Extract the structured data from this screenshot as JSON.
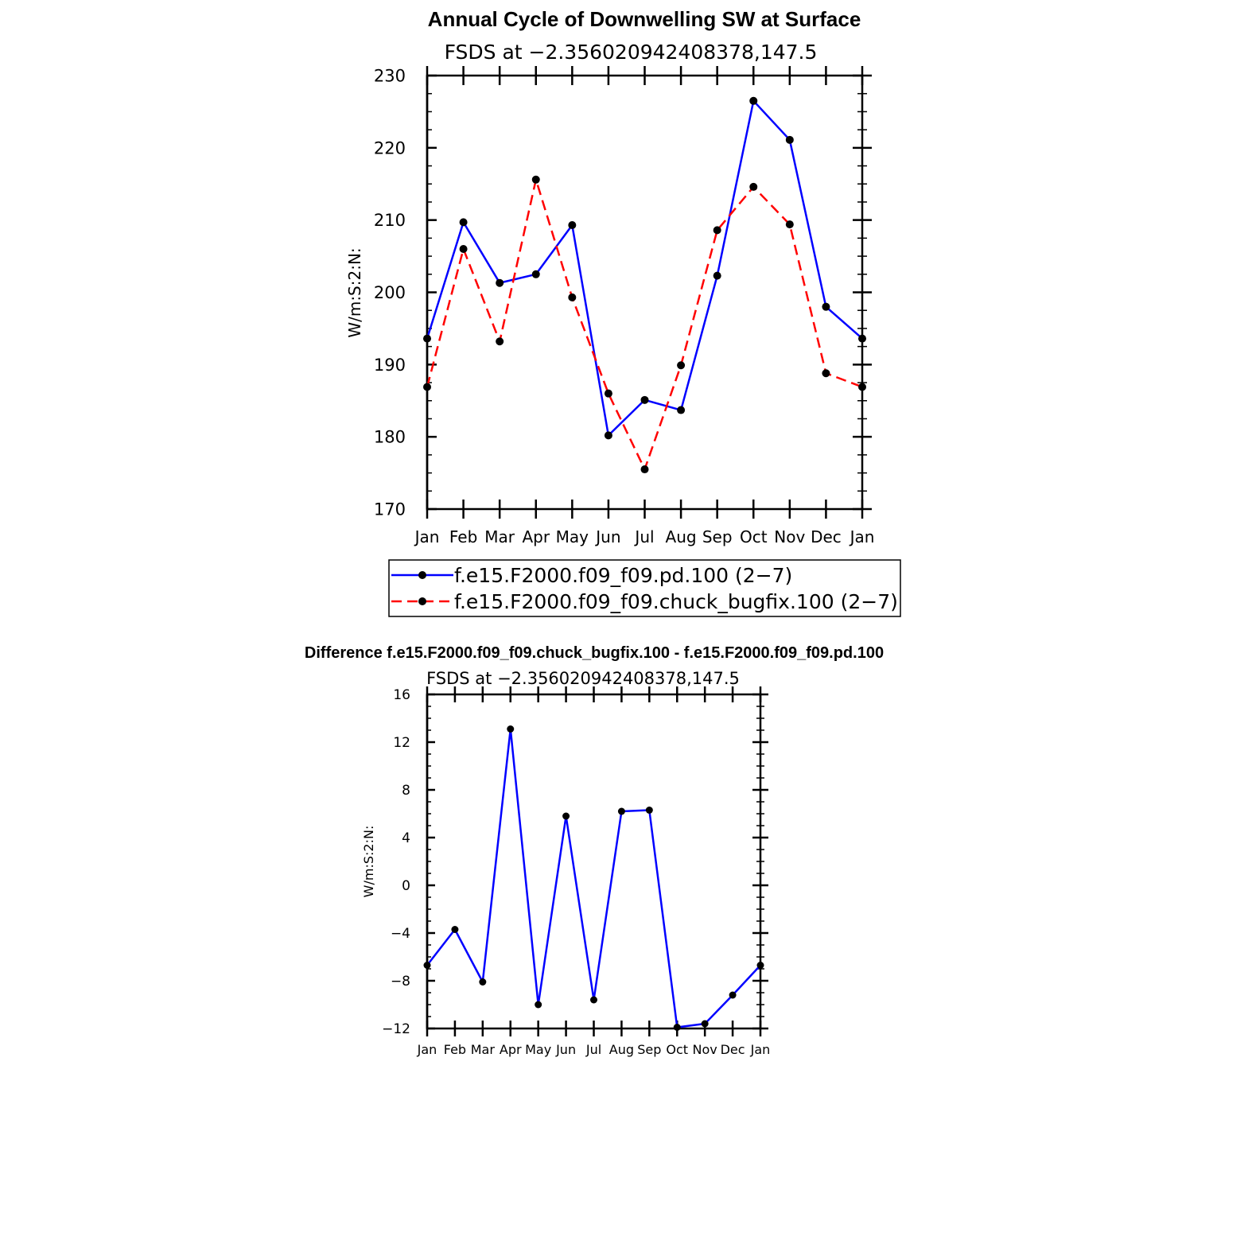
{
  "chart_data": [
    {
      "type": "line",
      "title": "Annual Cycle of Downwelling SW at Surface",
      "subtitle": "FSDS at −2.356020942408378,147.5",
      "ylabel": "W/m:S:2:N:",
      "ylim": [
        170,
        230
      ],
      "yticks": [
        "170",
        "180",
        "190",
        "200",
        "210",
        "220",
        "230"
      ],
      "categories": [
        "Jan",
        "Feb",
        "Mar",
        "Apr",
        "May",
        "Jun",
        "Jul",
        "Aug",
        "Sep",
        "Oct",
        "Nov",
        "Dec",
        "Jan"
      ],
      "legend_position": "below",
      "series": [
        {
          "name": "f.e15.F2000.f09_f09.pd.100 (2−7)",
          "color": "#0000ff",
          "dash": "solid",
          "values": [
            193.6,
            209.7,
            201.3,
            202.5,
            209.3,
            180.2,
            185.1,
            183.7,
            202.3,
            226.5,
            221.1,
            198.0,
            193.6
          ]
        },
        {
          "name": "f.e15.F2000.f09_f09.chuck_bugfix.100 (2−7)",
          "color": "#ff0000",
          "dash": "dashed",
          "values": [
            186.9,
            206.0,
            193.2,
            215.6,
            199.3,
            186.0,
            175.5,
            189.9,
            208.6,
            214.6,
            209.4,
            188.8,
            186.9
          ]
        }
      ]
    },
    {
      "type": "line",
      "title": "Difference f.e15.F2000.f09_f09.chuck_bugfix.100 - f.e15.F2000.f09_f09.pd.100",
      "subtitle": "FSDS at −2.356020942408378,147.5",
      "ylabel": "W/m:S:2:N:",
      "ylim": [
        -12,
        16
      ],
      "yticks": [
        "−12",
        "−8",
        "−4",
        "0",
        "4",
        "8",
        "12",
        "16"
      ],
      "categories": [
        "Jan",
        "Feb",
        "Mar",
        "Apr",
        "May",
        "Jun",
        "Jul",
        "Aug",
        "Sep",
        "Oct",
        "Nov",
        "Dec",
        "Jan"
      ],
      "series": [
        {
          "color": "#0000ff",
          "dash": "solid",
          "values": [
            -6.7,
            -3.7,
            -8.1,
            13.1,
            -10.0,
            5.8,
            -9.6,
            6.2,
            6.3,
            -11.9,
            -11.6,
            -9.2,
            -6.7
          ]
        }
      ]
    }
  ]
}
